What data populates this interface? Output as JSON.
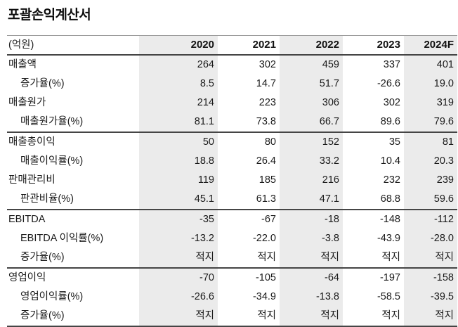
{
  "title": "포괄손익계산서",
  "table": {
    "unit_label": "(억원)",
    "columns": [
      "2020",
      "2021",
      "2022",
      "2023",
      "2024F"
    ],
    "sections": [
      {
        "rows": [
          {
            "label": "매출액",
            "indent": false,
            "values": [
              "264",
              "302",
              "459",
              "337",
              "401"
            ]
          },
          {
            "label": "증가율(%)",
            "indent": true,
            "values": [
              "8.5",
              "14.7",
              "51.7",
              "-26.6",
              "19.0"
            ]
          },
          {
            "label": "매출원가",
            "indent": false,
            "values": [
              "214",
              "223",
              "306",
              "302",
              "319"
            ]
          },
          {
            "label": "매출원가율(%)",
            "indent": true,
            "values": [
              "81.1",
              "73.8",
              "66.7",
              "89.6",
              "79.6"
            ]
          }
        ]
      },
      {
        "rows": [
          {
            "label": "매출총이익",
            "indent": false,
            "values": [
              "50",
              "80",
              "152",
              "35",
              "81"
            ]
          },
          {
            "label": "매출이익률(%)",
            "indent": true,
            "values": [
              "18.8",
              "26.4",
              "33.2",
              "10.4",
              "20.3"
            ]
          },
          {
            "label": "판매관리비",
            "indent": false,
            "values": [
              "119",
              "185",
              "216",
              "232",
              "239"
            ]
          },
          {
            "label": "판관비율(%)",
            "indent": true,
            "values": [
              "45.1",
              "61.3",
              "47.1",
              "68.8",
              "59.6"
            ]
          }
        ]
      },
      {
        "rows": [
          {
            "label": "EBITDA",
            "indent": false,
            "values": [
              "-35",
              "-67",
              "-18",
              "-148",
              "-112"
            ]
          },
          {
            "label": "EBITDA 이익률(%)",
            "indent": true,
            "values": [
              "-13.2",
              "-22.0",
              "-3.8",
              "-43.9",
              "-28.0"
            ]
          },
          {
            "label": "증가율(%)",
            "indent": true,
            "values": [
              "적지",
              "적지",
              "적지",
              "적지",
              "적지"
            ]
          }
        ]
      },
      {
        "rows": [
          {
            "label": "영업이익",
            "indent": false,
            "values": [
              "-70",
              "-105",
              "-64",
              "-197",
              "-158"
            ]
          },
          {
            "label": "영업이익률(%)",
            "indent": true,
            "values": [
              "-26.6",
              "-34.9",
              "-13.8",
              "-58.5",
              "-39.5"
            ]
          },
          {
            "label": "증가율(%)",
            "indent": true,
            "values": [
              "적지",
              "적지",
              "적지",
              "적지",
              "적지"
            ]
          }
        ]
      }
    ]
  },
  "colors": {
    "stripe": "#ebebeb",
    "heavy_border": "#454545",
    "light_border": "#9b9b9b",
    "text": "#1a1a1a"
  }
}
